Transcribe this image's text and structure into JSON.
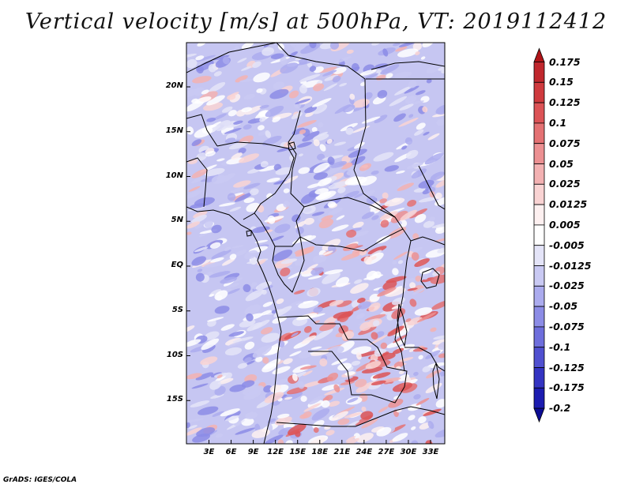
{
  "title": "Vertical velocity [m/s] at 500hPa, VT: 2019112412",
  "map": {
    "variable": "Vertical velocity",
    "units": "m/s",
    "level": "500hPa",
    "valid_time": "2019112412",
    "lat_ticks": [
      "20N",
      "15N",
      "10N",
      "5N",
      "EQ",
      "5S",
      "10S",
      "15S"
    ],
    "lat_values": [
      20,
      15,
      10,
      5,
      0,
      -5,
      -10,
      -15
    ],
    "lon_ticks": [
      "3E",
      "6E",
      "9E",
      "12E",
      "15E",
      "18E",
      "21E",
      "24E",
      "27E",
      "30E",
      "33E"
    ],
    "lon_values": [
      3,
      6,
      9,
      12,
      15,
      18,
      21,
      24,
      27,
      30,
      33
    ]
  },
  "colorbar": {
    "labels": [
      "0.175",
      "0.15",
      "0.125",
      "0.1",
      "0.075",
      "0.05",
      "0.025",
      "0.0125",
      "0.005",
      "-0.005",
      "-0.0125",
      "-0.025",
      "-0.05",
      "-0.075",
      "-0.1",
      "-0.125",
      "-0.175",
      "-0.2"
    ],
    "colors": [
      "#b01418",
      "#c0272d",
      "#cf3a3e",
      "#dc5356",
      "#e47173",
      "#ec9092",
      "#f3b1b2",
      "#f9d3d3",
      "#fdf0f0",
      "#ffffff",
      "#e4e4f8",
      "#c9c9f3",
      "#ababee",
      "#8c8ce6",
      "#6e6edc",
      "#5050d0",
      "#3434c2",
      "#1c1cb0",
      "#0c0c94"
    ]
  },
  "credit": "GrADS: IGES/COLA"
}
